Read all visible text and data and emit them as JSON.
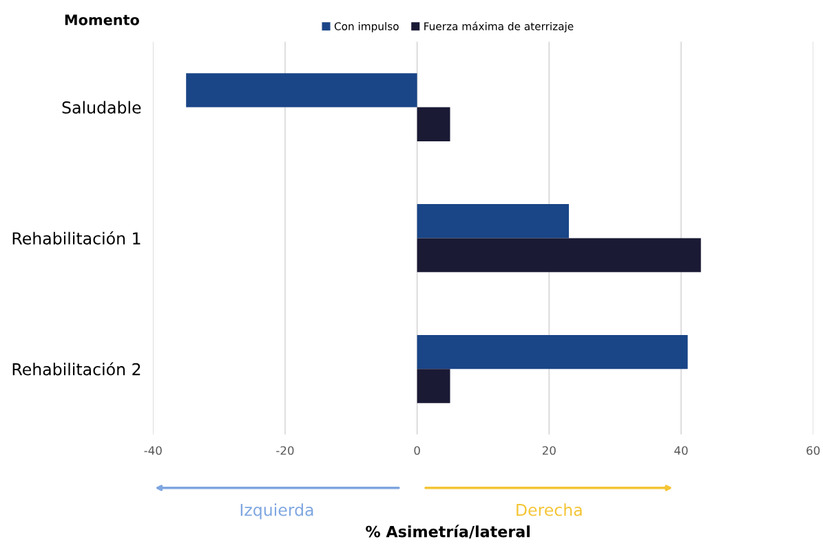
{
  "chart_data": {
    "type": "bar",
    "orientation": "horizontal",
    "ylabel": "Momento",
    "categories": [
      "Saludable",
      "Rehabilitación 1",
      "Rehabilitación 2"
    ],
    "series": [
      {
        "name": "Con impulso",
        "color": "#1a4587",
        "values": [
          -35,
          23,
          41
        ]
      },
      {
        "name": "Fuerza máxima de aterrizaje",
        "color": "#1b1a35",
        "values": [
          5,
          43,
          5
        ]
      }
    ],
    "xlim": [
      -40,
      60
    ],
    "xticks": [
      -40,
      -20,
      0,
      20,
      40,
      60
    ],
    "grid": "x",
    "legend": "top",
    "annotations": [
      "Izquierda",
      "Derecha",
      "% Asimetría/lateral"
    ]
  }
}
